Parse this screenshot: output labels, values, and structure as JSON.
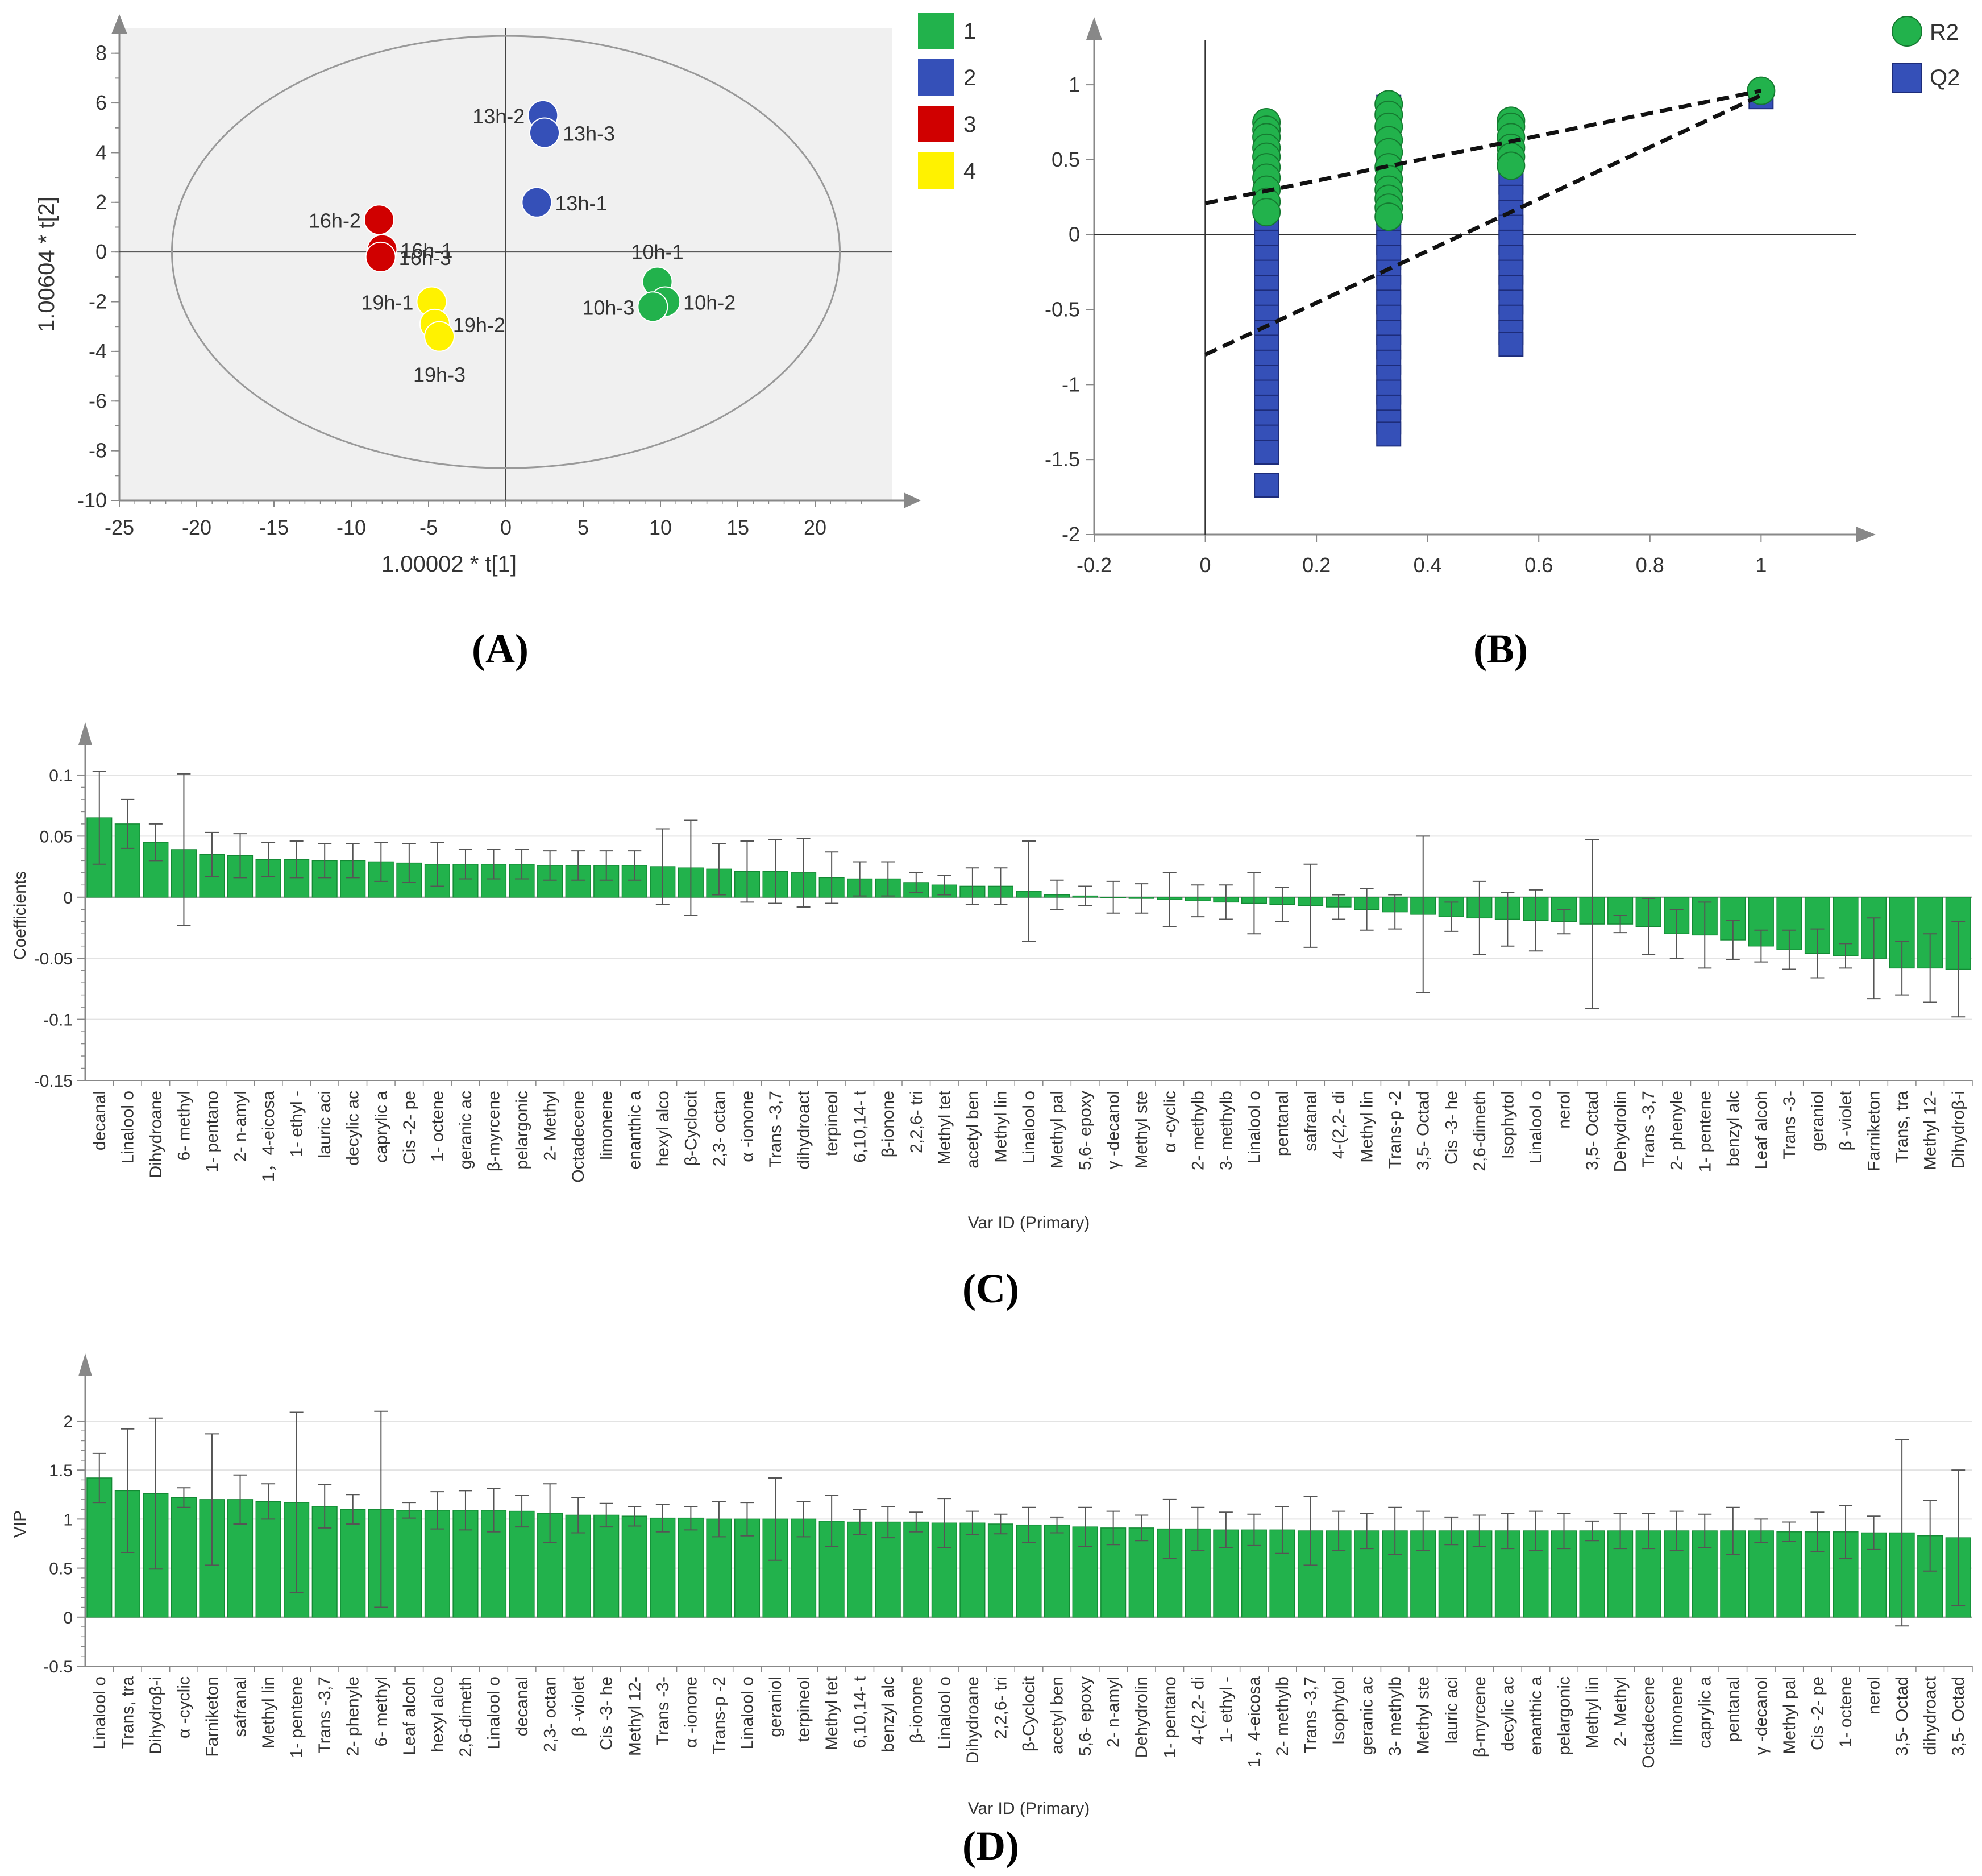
{
  "panels": {
    "A": "(A)",
    "B": "(B)",
    "C": "(C)",
    "D": "(D)"
  },
  "colors": {
    "green": "#22b24c",
    "blue": "#3550b8",
    "red": "#d00000",
    "yellow": "#fff200",
    "green_text": "#1e8a3c",
    "blue_text": "#2a3f9a",
    "red_text": "#9b1c1c",
    "yellow_text": "#b89a1a"
  },
  "chart_data": [
    {
      "id": "A",
      "type": "scatter",
      "xlabel": "1.00002 * t[1]",
      "ylabel": "1.00604 * t[2]",
      "xlim": [
        -25,
        25
      ],
      "ylim": [
        -10,
        9
      ],
      "xticks": [
        -25,
        -20,
        -15,
        -10,
        -5,
        0,
        5,
        10,
        15,
        20
      ],
      "yticks": [
        -10,
        -8,
        -6,
        -4,
        -2,
        0,
        2,
        4,
        6,
        8
      ],
      "ellipse": {
        "rx": 21.6,
        "ry": 8.7
      },
      "legend": [
        {
          "label": "1",
          "color": "green"
        },
        {
          "label": "2",
          "color": "blue"
        },
        {
          "label": "3",
          "color": "red"
        },
        {
          "label": "4",
          "color": "yellow"
        }
      ],
      "points": [
        {
          "label": "13h-2",
          "x": 2.4,
          "y": 5.5,
          "group": "blue",
          "lpos": "left"
        },
        {
          "label": "13h-3",
          "x": 2.5,
          "y": 4.8,
          "group": "blue",
          "lpos": "right"
        },
        {
          "label": "13h-1",
          "x": 2.0,
          "y": 2.0,
          "group": "blue",
          "lpos": "right"
        },
        {
          "label": "16h-2",
          "x": -8.2,
          "y": 1.3,
          "group": "red",
          "lpos": "left"
        },
        {
          "label": "16h-1",
          "x": -8.0,
          "y": 0.1,
          "group": "red",
          "lpos": "right"
        },
        {
          "label": "16h-3",
          "x": -8.1,
          "y": -0.2,
          "group": "red",
          "lpos": "right"
        },
        {
          "label": "10h-1",
          "x": 9.8,
          "y": -1.2,
          "group": "green",
          "lpos": "above"
        },
        {
          "label": "10h-2",
          "x": 10.3,
          "y": -2.0,
          "group": "green",
          "lpos": "right"
        },
        {
          "label": "10h-3",
          "x": 9.5,
          "y": -2.2,
          "group": "green",
          "lpos": "left"
        },
        {
          "label": "19h-1",
          "x": -4.8,
          "y": -2.0,
          "group": "yellow",
          "lpos": "left"
        },
        {
          "label": "19h-2",
          "x": -4.6,
          "y": -2.9,
          "group": "yellow",
          "lpos": "right"
        },
        {
          "label": "19h-3",
          "x": -4.3,
          "y": -3.4,
          "group": "yellow",
          "lpos": "below"
        }
      ]
    },
    {
      "id": "B",
      "type": "scatter",
      "xlim": [
        -0.2,
        1.15
      ],
      "ylim": [
        -2,
        1.3
      ],
      "xticks": [
        -0.2,
        0,
        0.2,
        0.4,
        0.6,
        0.8,
        1
      ],
      "yticks": [
        -2,
        -1.5,
        -1,
        -0.5,
        0,
        0.5,
        1
      ],
      "legend": [
        {
          "label": "R2",
          "shape": "circle"
        },
        {
          "label": "Q2",
          "shape": "square"
        }
      ],
      "lines": [
        {
          "x": [
            0,
            1
          ],
          "y": [
            0.21,
            0.96
          ]
        },
        {
          "x": [
            0,
            1
          ],
          "y": [
            -0.8,
            0.93
          ]
        }
      ],
      "R2": [
        {
          "x": 0.11,
          "values": [
            0.75,
            0.7,
            0.65,
            0.58,
            0.52,
            0.45,
            0.38,
            0.3,
            0.22,
            0.15
          ]
        },
        {
          "x": 0.33,
          "values": [
            0.87,
            0.8,
            0.72,
            0.63,
            0.55,
            0.45,
            0.37,
            0.3,
            0.24,
            0.18,
            0.12
          ]
        },
        {
          "x": 0.55,
          "values": [
            0.76,
            0.72,
            0.65,
            0.58,
            0.52,
            0.46
          ]
        },
        {
          "x": 1.0,
          "values": [
            0.96
          ]
        }
      ],
      "Q2": [
        {
          "x": 0.11,
          "values": [
            0.32,
            0.25,
            0.15,
            0.05,
            -0.05,
            -0.15,
            -0.25,
            -0.35,
            -0.45,
            -0.55,
            -0.65,
            -0.75,
            -0.85,
            -0.95,
            -1.05,
            -1.15,
            -1.25,
            -1.35,
            -1.45,
            -1.67
          ]
        },
        {
          "x": 0.33,
          "values": [
            0.85,
            0.75,
            0.65,
            0.55,
            0.45,
            0.35,
            0.25,
            0.15,
            0.05,
            -0.05,
            -0.15,
            -0.25,
            -0.35,
            -0.45,
            -0.55,
            -0.65,
            -0.75,
            -0.85,
            -0.95,
            -1.05,
            -1.15,
            -1.25,
            -1.33
          ]
        },
        {
          "x": 0.55,
          "values": [
            0.42,
            0.35,
            0.25,
            0.15,
            0.05,
            -0.05,
            -0.15,
            -0.25,
            -0.35,
            -0.45,
            -0.55,
            -0.65,
            -0.73
          ]
        },
        {
          "x": 1.0,
          "values": [
            0.92
          ]
        }
      ]
    },
    {
      "id": "C",
      "type": "bar",
      "xlabel": "Var ID (Primary)",
      "ylabel": "Coefficients",
      "ylim": [
        -0.15,
        0.12
      ],
      "yticks": [
        -0.15,
        -0.1,
        -0.05,
        0,
        0.05,
        0.1
      ],
      "categories": [
        "decanal",
        "Linalool o",
        "Dihydroane",
        "6- methyl",
        "1- pentano",
        "2- n-amyl",
        "1，4-eicosa",
        "1- ethyl -",
        "lauric aci",
        "decylic ac",
        "caprylic a",
        "Cis -2- pe",
        "1- octene",
        "geranic ac",
        "β-myrcene",
        "pelargonic",
        "2- Methyl",
        "Octadecene",
        "limonene",
        "enanthic a",
        "hexyl alco",
        "β-Cyclocit",
        "2,3- octan",
        "α -ionone",
        "Trans -3,7",
        "dihydroact",
        "terpineol",
        "6,10,14- t",
        "β-ionone",
        "2,2,6- tri",
        "Methyl tet",
        "acetyl ben",
        "Methyl lin",
        "Linalool o",
        "Methyl pal",
        "5,6- epoxy",
        "γ -decanol",
        "Methyl ste",
        "α -cyclic",
        "2- methylb",
        "3- methylb",
        "Linalool o",
        "pentanal",
        "safranal",
        "4-(2,2- di",
        "Methyl lin",
        "Trans-p -2",
        "3,5- Octad",
        "Cis -3- he",
        "2,6-dimeth",
        "Isophytol",
        "Linalool o",
        "nerol",
        "3,5- Octad",
        "Dehydrolin",
        "Trans -3,7",
        "2- phenyle",
        "1- pentene",
        "benzyl alc",
        "Leaf alcoh",
        "Trans -3-",
        "geraniol",
        "β -violet",
        "Farniketon",
        "Trans, tra",
        "Methyl 12-",
        "Dihydroβ-i"
      ],
      "values": [
        0.065,
        0.06,
        0.045,
        0.039,
        0.035,
        0.034,
        0.031,
        0.031,
        0.03,
        0.03,
        0.029,
        0.028,
        0.027,
        0.027,
        0.027,
        0.027,
        0.026,
        0.026,
        0.026,
        0.026,
        0.025,
        0.024,
        0.023,
        0.021,
        0.021,
        0.02,
        0.016,
        0.015,
        0.015,
        0.012,
        0.01,
        0.009,
        0.009,
        0.005,
        0.002,
        0.001,
        0.0,
        -0.001,
        -0.002,
        -0.003,
        -0.004,
        -0.005,
        -0.006,
        -0.007,
        -0.008,
        -0.01,
        -0.012,
        -0.014,
        -0.016,
        -0.017,
        -0.018,
        -0.019,
        -0.02,
        -0.022,
        -0.022,
        -0.024,
        -0.03,
        -0.031,
        -0.035,
        -0.04,
        -0.043,
        -0.046,
        -0.048,
        -0.05,
        -0.058,
        -0.058,
        -0.059
      ],
      "errors": [
        0.038,
        0.02,
        0.015,
        0.062,
        0.018,
        0.018,
        0.014,
        0.015,
        0.014,
        0.014,
        0.016,
        0.016,
        0.018,
        0.012,
        0.012,
        0.012,
        0.012,
        0.012,
        0.012,
        0.012,
        0.031,
        0.039,
        0.021,
        0.025,
        0.026,
        0.028,
        0.021,
        0.014,
        0.014,
        0.008,
        0.008,
        0.015,
        0.015,
        0.041,
        0.012,
        0.008,
        0.013,
        0.012,
        0.022,
        0.013,
        0.014,
        0.025,
        0.014,
        0.034,
        0.01,
        0.017,
        0.014,
        0.064,
        0.012,
        0.03,
        0.022,
        0.025,
        0.01,
        0.069,
        0.007,
        0.023,
        0.02,
        0.027,
        0.016,
        0.013,
        0.016,
        0.02,
        0.01,
        0.033,
        0.022,
        0.028,
        0.039
      ]
    },
    {
      "id": "D",
      "type": "bar",
      "xlabel": "Var ID (Primary)",
      "ylabel": "VIP",
      "ylim": [
        -0.5,
        2.4
      ],
      "yticks": [
        -0.5,
        0,
        0.5,
        1,
        1.5,
        2
      ],
      "categories": [
        "Linalool o",
        "Trans, tra",
        "Dihydroβ-i",
        "α -cyclic",
        "Farniketon",
        "safranal",
        "Methyl lin",
        "1- pentene",
        "Trans -3,7",
        "2- phenyle",
        "6- methyl",
        "Leaf alcoh",
        "hexyl alco",
        "2,6-dimeth",
        "Linalool o",
        "decanal",
        "2,3- octan",
        "β -violet",
        "Cis -3- he",
        "Methyl 12-",
        "Trans -3-",
        "α -ionone",
        "Trans-p -2",
        "Linalool o",
        "geraniol",
        "terpineol",
        "Methyl tet",
        "6,10,14- t",
        "benzyl alc",
        "β-ionone",
        "Linalool o",
        "Dihydroane",
        "2,2,6- tri",
        "β-Cyclocit",
        "acetyl ben",
        "5,6- epoxy",
        "2- n-amyl",
        "Dehydrolin",
        "1- pentano",
        "4-(2,2- di",
        "1- ethyl -",
        "1，4-eicosa",
        "2- methylb",
        "Trans -3,7",
        "Isophytol",
        "geranic ac",
        "3- methylb",
        "Methyl ste",
        "lauric aci",
        "β-myrcene",
        "decylic ac",
        "enanthic a",
        "pelargonic",
        "Methyl lin",
        "2- Methyl",
        "Octadecene",
        "limonene",
        "caprylic a",
        "pentanal",
        "γ -decanol",
        "Methyl pal",
        "Cis -2- pe",
        "1- octene",
        "nerol",
        "3,5- Octad",
        "dihydroact",
        "3,5- Octad"
      ],
      "values": [
        1.42,
        1.29,
        1.26,
        1.22,
        1.2,
        1.2,
        1.18,
        1.17,
        1.13,
        1.1,
        1.1,
        1.09,
        1.09,
        1.09,
        1.09,
        1.08,
        1.06,
        1.04,
        1.04,
        1.03,
        1.01,
        1.01,
        1.0,
        1.0,
        1.0,
        1.0,
        0.98,
        0.97,
        0.97,
        0.97,
        0.96,
        0.96,
        0.95,
        0.94,
        0.94,
        0.92,
        0.91,
        0.91,
        0.9,
        0.9,
        0.89,
        0.89,
        0.89,
        0.88,
        0.88,
        0.88,
        0.88,
        0.88,
        0.88,
        0.88,
        0.88,
        0.88,
        0.88,
        0.88,
        0.88,
        0.88,
        0.88,
        0.88,
        0.88,
        0.88,
        0.87,
        0.87,
        0.87,
        0.86,
        0.86,
        0.83,
        0.81
      ],
      "errors": [
        0.25,
        0.63,
        0.77,
        0.1,
        0.67,
        0.25,
        0.18,
        0.92,
        0.22,
        0.15,
        1.0,
        0.08,
        0.19,
        0.2,
        0.22,
        0.16,
        0.3,
        0.18,
        0.12,
        0.1,
        0.14,
        0.12,
        0.18,
        0.17,
        0.42,
        0.18,
        0.26,
        0.13,
        0.16,
        0.1,
        0.25,
        0.12,
        0.1,
        0.18,
        0.08,
        0.2,
        0.17,
        0.13,
        0.3,
        0.22,
        0.18,
        0.16,
        0.24,
        0.35,
        0.2,
        0.18,
        0.24,
        0.2,
        0.14,
        0.16,
        0.18,
        0.2,
        0.18,
        0.1,
        0.18,
        0.18,
        0.2,
        0.17,
        0.24,
        0.12,
        0.1,
        0.2,
        0.27,
        0.17,
        0.95,
        0.36,
        0.69
      ]
    }
  ]
}
